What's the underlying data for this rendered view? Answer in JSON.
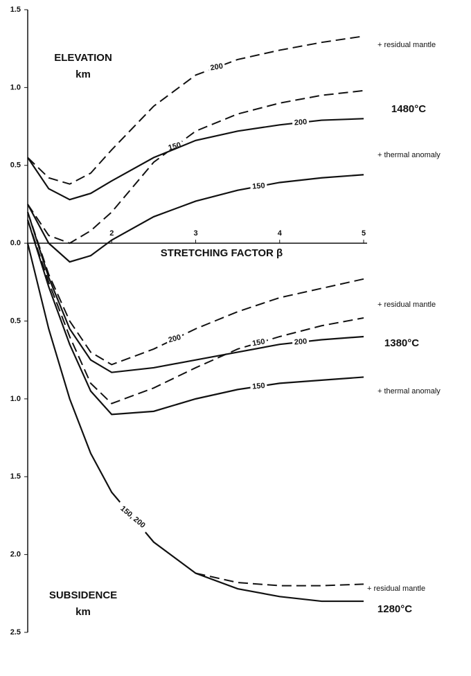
{
  "chart_data": {
    "type": "line",
    "x_label": "STRETCHING FACTOR β",
    "x": [
      1,
      1.25,
      1.5,
      1.75,
      2,
      2.5,
      3,
      3.5,
      4,
      4.5,
      5
    ],
    "xlim": [
      1,
      5
    ],
    "xticks": [
      2,
      3,
      4,
      5
    ],
    "ylim": [
      -2.5,
      1.5
    ],
    "yticks": [
      {
        "value": 1.5,
        "label": "1.5"
      },
      {
        "value": 1,
        "label": "1.0"
      },
      {
        "value": 0.5,
        "label": "0.5"
      },
      {
        "value": 0,
        "label": "0.0"
      },
      {
        "value": -0.5,
        "label": "0.5"
      },
      {
        "value": -1,
        "label": "1.0"
      },
      {
        "value": -1.5,
        "label": "1.5"
      },
      {
        "value": -2,
        "label": "2.0"
      },
      {
        "value": -2.5,
        "label": "2.5"
      }
    ],
    "series": [
      {
        "name": "200",
        "color": "#111111",
        "style": "dashed",
        "values": [
          0.55,
          0.42,
          0.38,
          0.45,
          0.6,
          0.88,
          1.08,
          1.18,
          1.24,
          1.29,
          1.33
        ]
      },
      {
        "name": "150",
        "color": "#111111",
        "style": "dashed",
        "values": [
          0.25,
          0.05,
          0.0,
          0.08,
          0.2,
          0.52,
          0.72,
          0.83,
          0.9,
          0.95,
          0.98
        ]
      },
      {
        "name": "200",
        "color": "#111111",
        "style": "solid",
        "values": [
          0.55,
          0.35,
          0.28,
          0.32,
          0.4,
          0.55,
          0.66,
          0.72,
          0.76,
          0.79,
          0.8
        ]
      },
      {
        "name": "150",
        "color": "#111111",
        "style": "solid",
        "values": [
          0.25,
          0.0,
          -0.12,
          -0.08,
          0.02,
          0.17,
          0.27,
          0.34,
          0.39,
          0.42,
          0.44
        ]
      },
      {
        "name": "200",
        "color": "#111111",
        "style": "dashed",
        "values": [
          0.2,
          -0.2,
          -0.5,
          -0.7,
          -0.78,
          -0.68,
          -0.55,
          -0.44,
          -0.35,
          -0.29,
          -0.23
        ]
      },
      {
        "name": "150",
        "color": "#111111",
        "style": "dashed",
        "values": [
          0.15,
          -0.25,
          -0.6,
          -0.9,
          -1.03,
          -0.93,
          -0.8,
          -0.68,
          -0.6,
          -0.53,
          -0.48
        ]
      },
      {
        "name": "200",
        "color": "#111111",
        "style": "solid",
        "values": [
          0.2,
          -0.22,
          -0.55,
          -0.75,
          -0.83,
          -0.8,
          -0.75,
          -0.7,
          -0.65,
          -0.62,
          -0.6
        ]
      },
      {
        "name": "150",
        "color": "#111111",
        "style": "solid",
        "values": [
          0.15,
          -0.28,
          -0.65,
          -0.95,
          -1.1,
          -1.08,
          -1.0,
          -0.94,
          -0.9,
          -0.88,
          -0.86
        ]
      },
      {
        "name": "150, 200",
        "color": "#111111",
        "style": "solid",
        "values": [
          0.0,
          -0.55,
          -1.0,
          -1.35,
          -1.6,
          -1.92,
          -2.12,
          -2.22,
          -2.27,
          -2.3,
          -2.3
        ]
      },
      {
        "color": "#111111",
        "style": "dashed",
        "values": [
          null,
          null,
          null,
          null,
          null,
          null,
          -2.12,
          -2.18,
          -2.2,
          -2.2,
          -2.19
        ]
      }
    ],
    "annotations": [
      "ELEVATION",
      "km",
      "SUBSIDENCE",
      "km",
      "+ residual mantle",
      "1480°C",
      "+ thermal anomaly",
      "+ residual mantle",
      "1380°C",
      "+ thermal anomaly",
      "+ residual mantle",
      "1280°C"
    ]
  }
}
